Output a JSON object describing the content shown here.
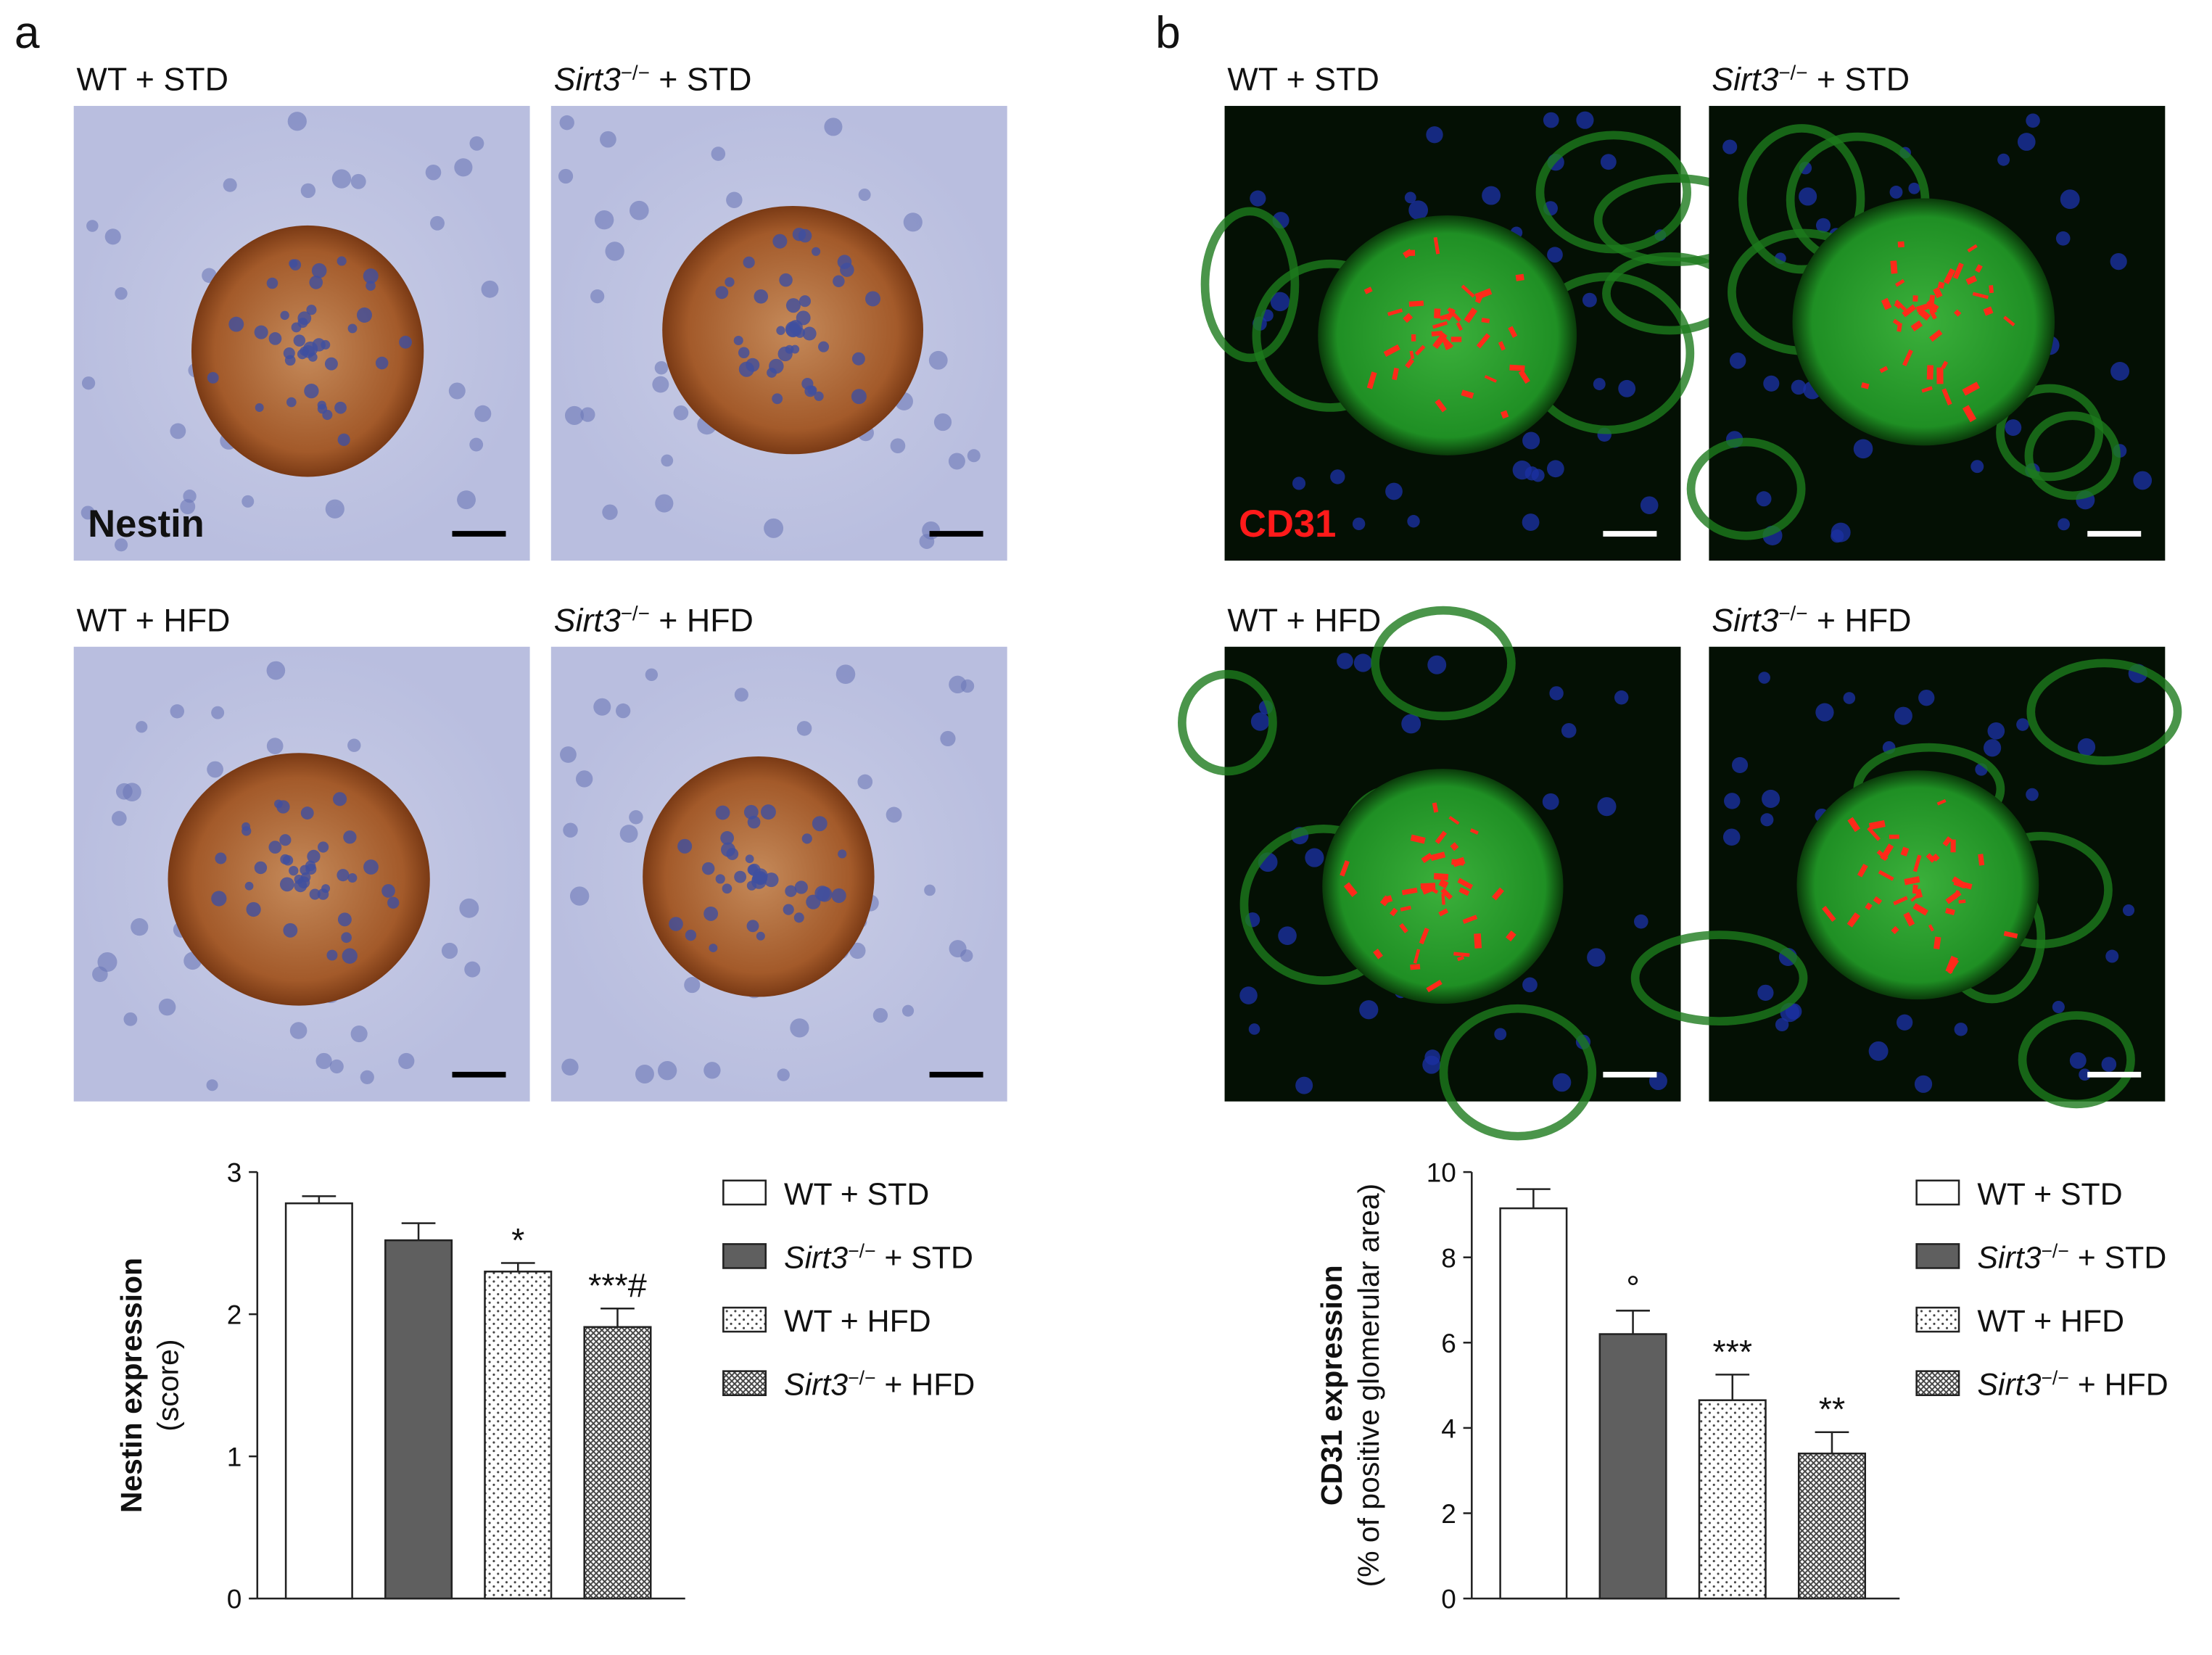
{
  "panels": [
    {
      "letter": "a",
      "stain": "Nestin",
      "images": [
        "WT + STD",
        "Sirt3−/− + STD",
        "WT + HFD",
        "Sirt3−/− + HFD"
      ]
    },
    {
      "letter": "b",
      "stain": "CD31",
      "images": [
        "WT + STD",
        "Sirt3−/− + STD",
        "WT + HFD",
        "Sirt3−/− + HFD"
      ]
    }
  ],
  "chart_data": [
    {
      "type": "bar",
      "ylabel": "Nestin expression",
      "ylabel_sub": "(score)",
      "categories": [
        "WT + STD",
        "Sirt3−/− + STD",
        "WT + HFD",
        "Sirt3−/− + HFD"
      ],
      "values": [
        2.78,
        2.52,
        2.3,
        1.91
      ],
      "errors": [
        0.05,
        0.12,
        0.06,
        0.13
      ],
      "annotations": [
        null,
        null,
        "*",
        "***#"
      ],
      "fills": [
        "white",
        "solid",
        "dots",
        "crosshatch"
      ],
      "color": "#5f5f5f",
      "ylim": [
        0,
        3
      ],
      "yticks": [
        0,
        1,
        2,
        3
      ]
    },
    {
      "type": "bar",
      "ylabel": "CD31 expression",
      "ylabel_sub": "(% of positive glomerular area)",
      "categories": [
        "WT + STD",
        "Sirt3−/− + STD",
        "WT + HFD",
        "Sirt3−/− + HFD"
      ],
      "values": [
        9.15,
        6.2,
        4.65,
        3.4
      ],
      "errors": [
        0.45,
        0.55,
        0.6,
        0.5
      ],
      "annotations": [
        null,
        "°",
        "***",
        "**"
      ],
      "fills": [
        "white",
        "solid",
        "dots",
        "crosshatch"
      ],
      "color": "#5f5f5f",
      "ylim": [
        0,
        10
      ],
      "yticks": [
        0,
        2,
        4,
        6,
        8,
        10
      ]
    }
  ]
}
